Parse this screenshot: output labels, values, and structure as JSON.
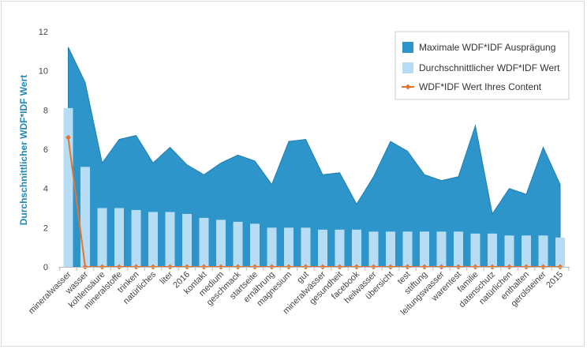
{
  "chart_data": {
    "type": "area",
    "title": "",
    "ylabel": "Durchschnittlicher WDF*IDF Wert",
    "xlabel": "",
    "ylim": [
      0,
      12
    ],
    "yticks": [
      "0",
      "2",
      "4",
      "6",
      "8",
      "10",
      "12"
    ],
    "grid": false,
    "legend_position": "top-right",
    "categories": [
      "mineralwasser",
      "wasser",
      "kohlensäure",
      "mineralstoffe",
      "trinken",
      "natürliches",
      "liter",
      "2016",
      "kontakt",
      "medium",
      "geschmack",
      "startseite",
      "ernährung",
      "magnesium",
      "gut",
      "mineralwässer",
      "gesundheit",
      "facebook",
      "heilwasser",
      "übersicht",
      "test",
      "stiftung",
      "leitungswasser",
      "warentest",
      "familie",
      "datenschutz",
      "natürlichen",
      "enthalten",
      "gerolsteiner",
      "2015"
    ],
    "series": [
      {
        "name": "Maximale WDF*IDF Ausprägung",
        "type": "area",
        "color": "#2d95c9",
        "values": [
          11.2,
          9.4,
          5.3,
          6.5,
          6.7,
          5.3,
          6.1,
          5.2,
          4.7,
          5.3,
          5.7,
          5.4,
          4.2,
          6.4,
          6.5,
          4.7,
          4.8,
          3.2,
          4.6,
          6.4,
          5.9,
          4.7,
          4.4,
          4.6,
          7.2,
          2.7,
          4.0,
          3.7,
          6.1,
          4.2
        ]
      },
      {
        "name": "Durchschnittlicher WDF*IDF Wert",
        "type": "bar",
        "color": "#b7ddf5",
        "values": [
          8.1,
          5.1,
          3.0,
          3.0,
          2.9,
          2.8,
          2.8,
          2.7,
          2.5,
          2.4,
          2.3,
          2.2,
          2.0,
          2.0,
          2.0,
          1.9,
          1.9,
          1.9,
          1.8,
          1.8,
          1.8,
          1.8,
          1.8,
          1.8,
          1.7,
          1.7,
          1.6,
          1.6,
          1.6,
          1.5
        ]
      },
      {
        "name": "WDF*IDF Wert Ihres Content",
        "type": "line",
        "color": "#e5732e",
        "values": [
          6.6,
          0,
          0,
          0,
          0,
          0,
          0,
          0,
          0,
          0,
          0,
          0,
          0,
          0,
          0,
          0,
          0,
          0,
          0,
          0,
          0,
          0,
          0,
          0,
          0,
          0,
          0,
          0,
          0,
          0
        ]
      }
    ]
  }
}
